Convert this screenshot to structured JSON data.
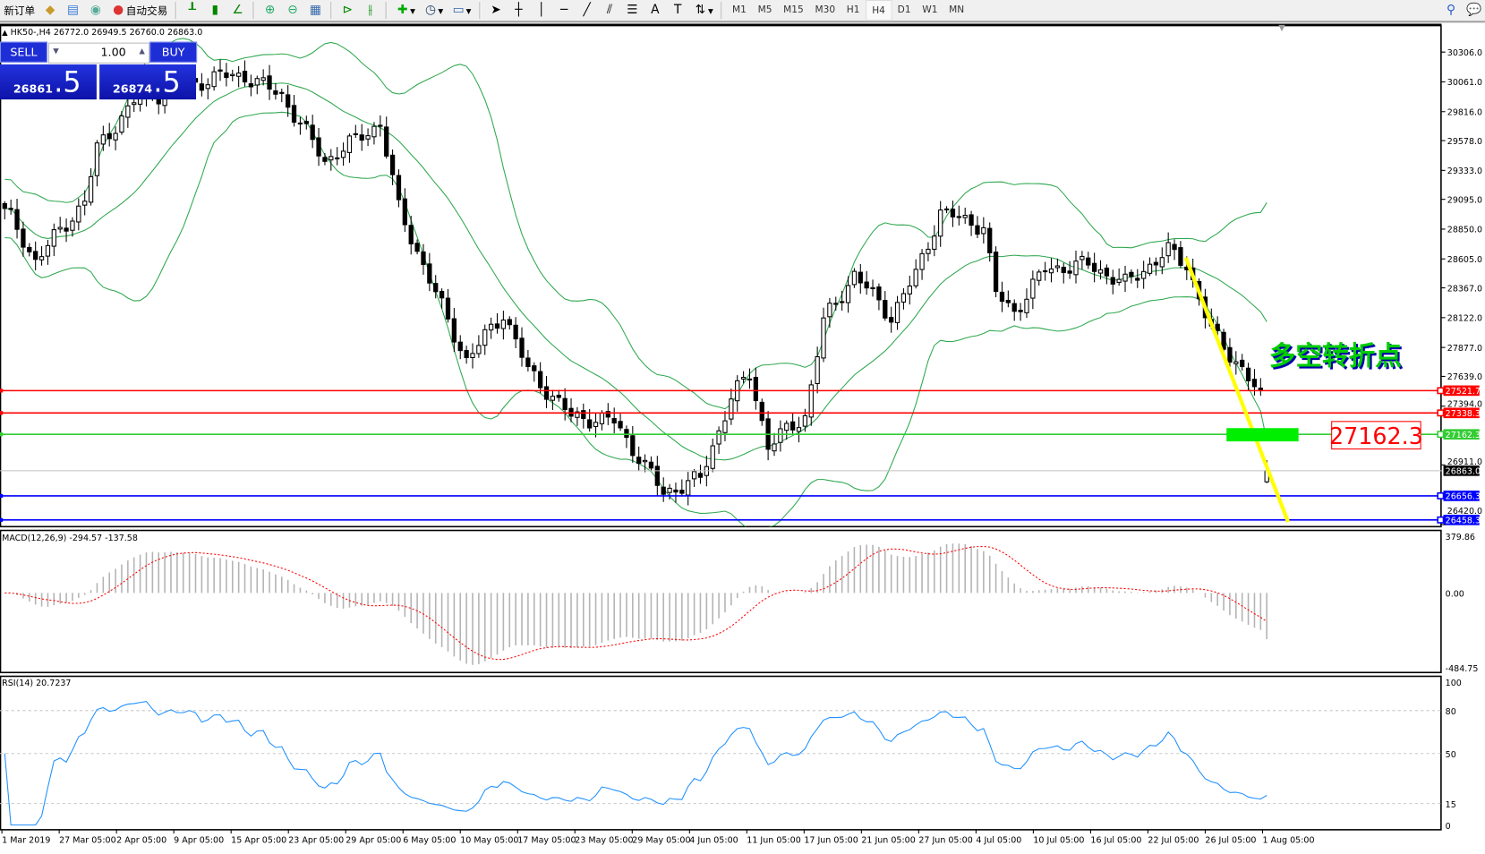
{
  "toolbar": {
    "new_order": "新订单",
    "auto_trading": "自动交易",
    "timeframes": [
      "M1",
      "M5",
      "M15",
      "M30",
      "H1",
      "H4",
      "D1",
      "W1",
      "MN"
    ],
    "active_timeframe": "H4"
  },
  "chart_header": "HK50-,H4  26772.0 26949.5 26760.0 26863.0",
  "trade_panel": {
    "sell": "SELL",
    "buy": "BUY",
    "lot": "1.00",
    "sell_small": "26861",
    "sell_big": ".5",
    "buy_small": "26874",
    "buy_big": ".5"
  },
  "annotation": {
    "text": "多空转折点",
    "box_value": "27162.3",
    "color": "#00cc00"
  },
  "price_axis": [
    "30306.0",
    "30061.0",
    "29816.0",
    "29578.0",
    "29333.0",
    "29095.0",
    "28850.0",
    "28605.0",
    "28367.0",
    "28122.0",
    "27877.0",
    "27639.0",
    "27394.0",
    "26911.0",
    "26420.0"
  ],
  "levels": [
    {
      "value": "27521.7",
      "color": "#ff0000"
    },
    {
      "value": "27338.3",
      "color": "#ff0000"
    },
    {
      "value": "27162.3",
      "color": "#33cc33"
    },
    {
      "value": "26863.0",
      "color": "#000000"
    },
    {
      "value": "26656.3",
      "color": "#0000ff"
    },
    {
      "value": "26458.3",
      "color": "#0000ff"
    }
  ],
  "macd": {
    "label": "MACD(12,26,9) -294.57 -137.58",
    "axis": [
      "379.86",
      "0.00",
      "-484.75"
    ]
  },
  "rsi": {
    "label": "RSI(14) 20.7237",
    "axis": [
      "100",
      "80",
      "50",
      "15",
      "0"
    ]
  },
  "time_axis": [
    "1 Mar 2019",
    "27 Mar 05:00",
    "2 Apr 05:00",
    "9 Apr 05:00",
    "15 Apr 05:00",
    "23 Apr 05:00",
    "29 Apr 05:00",
    "6 May 05:00",
    "10 May 05:00",
    "17 May 05:00",
    "23 May 05:00",
    "29 May 05:00",
    "4 Jun 05:00",
    "11 Jun 05:00",
    "17 Jun 05:00",
    "21 Jun 05:00",
    "27 Jun 05:00",
    "4 Jul 05:00",
    "10 Jul 05:00",
    "16 Jul 05:00",
    "22 Jul 05:00",
    "26 Jul 05:00",
    "1 Aug 05:00"
  ],
  "chart_data": {
    "type": "candlestick",
    "symbol": "HK50-",
    "timeframe": "H4",
    "last": {
      "open": 26772.0,
      "high": 26949.5,
      "low": 26760.0,
      "close": 26863.0
    },
    "ylim": [
      26420,
      30306
    ],
    "close_keypoints": [
      [
        0,
        29020
      ],
      [
        5,
        28590
      ],
      [
        13,
        29080
      ],
      [
        15,
        29510
      ],
      [
        21,
        29900
      ],
      [
        35,
        30110
      ],
      [
        39,
        30110
      ],
      [
        45,
        29950
      ],
      [
        52,
        29410
      ],
      [
        61,
        29720
      ],
      [
        64,
        29020
      ],
      [
        70,
        28320
      ],
      [
        75,
        27770
      ],
      [
        81,
        28160
      ],
      [
        85,
        27690
      ],
      [
        92,
        27310
      ],
      [
        99,
        27270
      ],
      [
        107,
        26680
      ],
      [
        113,
        26800
      ],
      [
        118,
        27460
      ],
      [
        121,
        27660
      ],
      [
        124,
        27070
      ],
      [
        130,
        27310
      ],
      [
        133,
        28090
      ],
      [
        138,
        28480
      ],
      [
        144,
        28130
      ],
      [
        148,
        28480
      ],
      [
        152,
        28990
      ],
      [
        159,
        28870
      ],
      [
        161,
        28320
      ],
      [
        164,
        28170
      ],
      [
        169,
        28520
      ],
      [
        176,
        28560
      ],
      [
        182,
        28400
      ],
      [
        189,
        28670
      ],
      [
        192,
        28560
      ],
      [
        196,
        28010
      ],
      [
        201,
        27700
      ],
      [
        204,
        27460
      ],
      [
        205,
        26863
      ]
    ],
    "indicators": [
      "Bollinger Bands",
      "MACD(12,26,9)",
      "RSI(14)"
    ]
  }
}
